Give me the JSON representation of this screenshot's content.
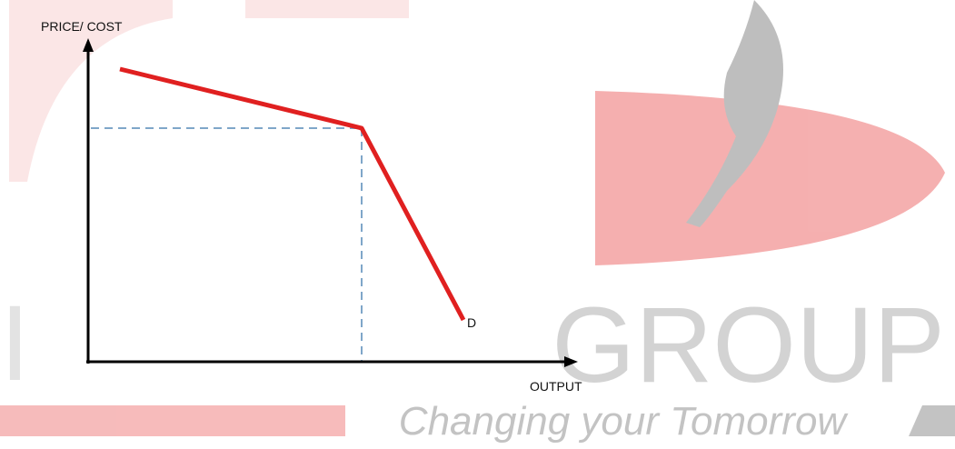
{
  "axes": {
    "y_label": "PRICE/ COST",
    "x_label": "OUTPUT"
  },
  "curve": {
    "label": "D"
  },
  "watermark": {
    "name": "GROUP",
    "tagline": "Changing your Tomorrow"
  }
}
